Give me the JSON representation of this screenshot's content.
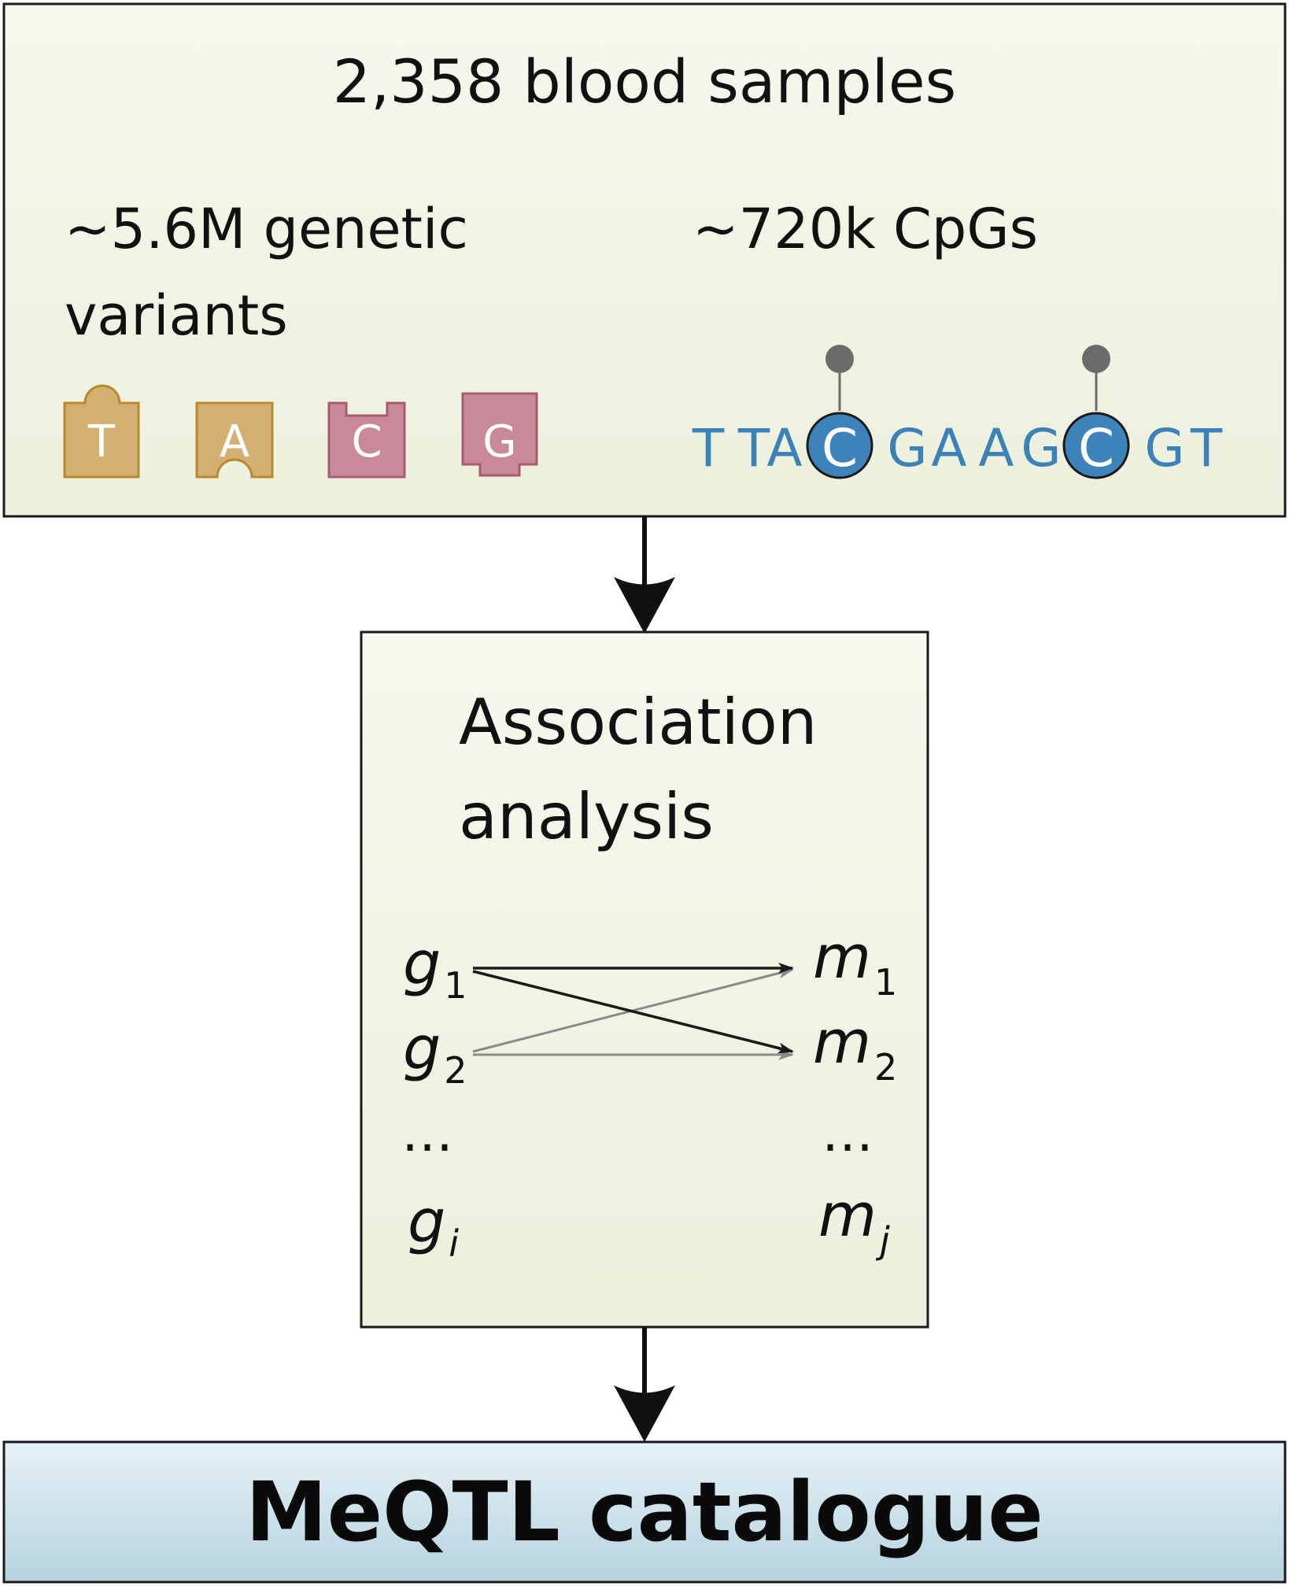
{
  "colors": {
    "box_fill_top": "#f7f8ee",
    "box_fill_bottom": "#ecf0dc",
    "catalogue_fill_top": "#e6f1f6",
    "catalogue_fill_bottom": "#b5d3e0",
    "purine_fill": "#d3b072",
    "purine_stroke": "#b88a30",
    "pyrimidine_fill": "#c9899a",
    "pyrimidine_stroke": "#a85a6e",
    "dna_text": "#3b82b8",
    "cpg_circle": "#3f83bb",
    "methyl_dot": "#6b6b6b"
  },
  "samples_box": {
    "title": "2,358 blood samples",
    "variants_line1": "~5.6M genetic",
    "variants_line2": "variants",
    "cpgs_label": "~720k CpGs",
    "nucleotide_blocks": [
      "T",
      "A",
      "C",
      "G"
    ],
    "dna_sequence": [
      "T",
      "T",
      "A",
      "C",
      "G",
      "A",
      "A",
      "G",
      "C",
      "G",
      "T"
    ],
    "methylated_positions": [
      3,
      8
    ]
  },
  "association_box": {
    "title_line1": "Association",
    "title_line2": "analysis",
    "genotypes": [
      {
        "base": "g",
        "sub": "1"
      },
      {
        "base": "g",
        "sub": "2"
      },
      {
        "base": "…",
        "sub": ""
      },
      {
        "base": "g",
        "sub": "i"
      }
    ],
    "methylation": [
      {
        "base": "m",
        "sub": "1"
      },
      {
        "base": "m",
        "sub": "2"
      },
      {
        "base": "…",
        "sub": ""
      },
      {
        "base": "m",
        "sub": "j"
      }
    ]
  },
  "catalogue_box": {
    "label": "MeQTL catalogue"
  }
}
